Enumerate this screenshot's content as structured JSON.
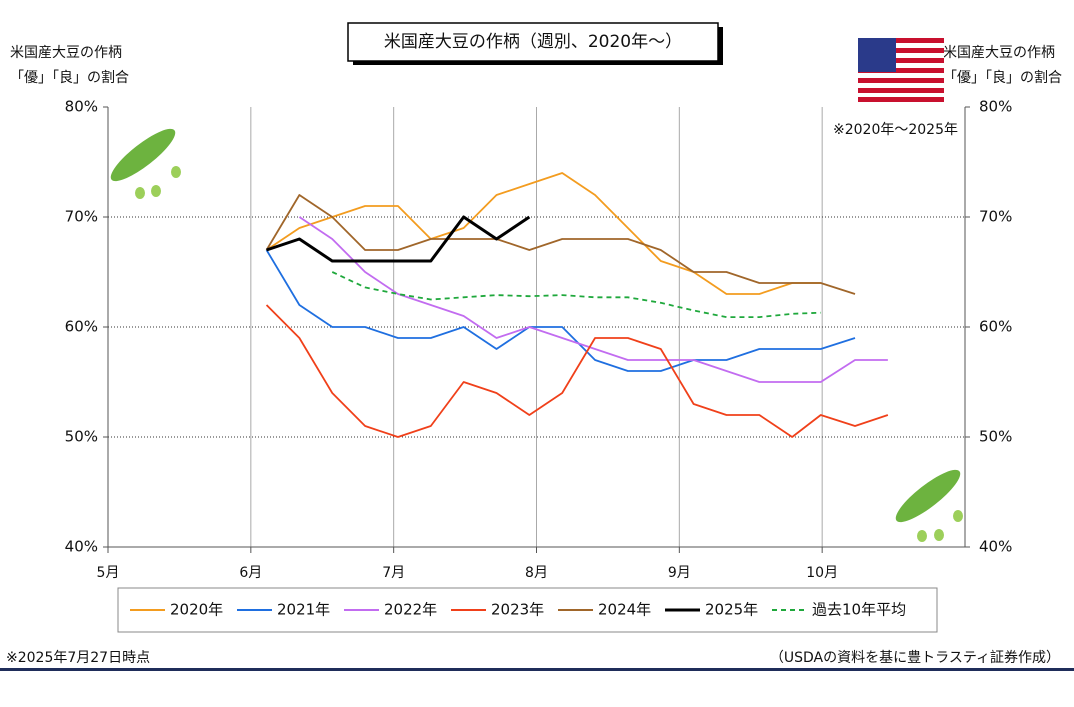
{
  "chart_data": {
    "type": "line",
    "title": "米国産大豆の作柄（週別、2020年～）",
    "ylabel": [
      "米国産大豆の作柄",
      "「優」「良」の割合"
    ],
    "y2label": [
      "米国産大豆の作柄",
      "「優」「良」の割合"
    ],
    "annotation": "※2020年～2025年",
    "footnote": "※2025年7月27日時点",
    "source": "（USDAの資料を基に豊トラスティ証券作成）",
    "x": [
      6.11,
      6.34,
      6.57,
      6.8,
      7.03,
      7.26,
      7.49,
      7.72,
      7.95,
      8.18,
      8.41,
      8.64,
      8.87,
      9.1,
      9.33,
      9.56,
      9.79,
      9.99,
      10.23,
      10.46
    ],
    "xlim": [
      5,
      11
    ],
    "xticks": [
      {
        "value": 5,
        "label": "5月"
      },
      {
        "value": 6,
        "label": "6月"
      },
      {
        "value": 7,
        "label": "7月"
      },
      {
        "value": 8,
        "label": "8月"
      },
      {
        "value": 9,
        "label": "9月"
      },
      {
        "value": 10,
        "label": "10月"
      }
    ],
    "ylim": [
      40,
      80
    ],
    "yticks": [
      {
        "value": 40,
        "label": "40%"
      },
      {
        "value": 50,
        "label": "50%"
      },
      {
        "value": 60,
        "label": "60%"
      },
      {
        "value": 70,
        "label": "70%"
      },
      {
        "value": 80,
        "label": "80%"
      }
    ],
    "y2lim": [
      40,
      80
    ],
    "y2ticks": [
      {
        "value": 40,
        "label": "40%"
      },
      {
        "value": 50,
        "label": "50%"
      },
      {
        "value": 60,
        "label": "60%"
      },
      {
        "value": 70,
        "label": "70%"
      },
      {
        "value": 80,
        "label": "80%"
      }
    ],
    "grid": true,
    "legend": "bottom",
    "series": [
      {
        "name": "2020年",
        "color": "#f39c1f",
        "values": [
          67,
          69,
          70,
          71,
          71,
          68,
          69,
          72,
          73,
          74,
          72,
          69,
          66,
          65,
          63,
          63,
          64,
          64,
          null,
          null
        ]
      },
      {
        "name": "2021年",
        "color": "#1f6fe0",
        "values": [
          67,
          62,
          60,
          60,
          59,
          59,
          60,
          58,
          60,
          60,
          57,
          56,
          56,
          57,
          57,
          58,
          58,
          58,
          59,
          null
        ]
      },
      {
        "name": "2022年",
        "color": "#c26cf0",
        "values": [
          null,
          70,
          68,
          65,
          63,
          62,
          61,
          59,
          60,
          59,
          58,
          57,
          57,
          57,
          56,
          55,
          55,
          55,
          57,
          57
        ]
      },
      {
        "name": "2023年",
        "color": "#f0401a",
        "values": [
          62,
          59,
          54,
          51,
          50,
          51,
          55,
          54,
          52,
          54,
          59,
          59,
          58,
          53,
          52,
          52,
          50,
          52,
          51,
          52
        ]
      },
      {
        "name": "2024年",
        "color": "#a0662a",
        "values": [
          67,
          72,
          70,
          67,
          67,
          68,
          68,
          68,
          67,
          68,
          68,
          68,
          67,
          65,
          65,
          64,
          64,
          64,
          63,
          null
        ]
      },
      {
        "name": "2025年",
        "color": "#000000",
        "values": [
          67,
          68,
          66,
          66,
          66,
          66,
          70,
          68,
          70,
          null,
          null,
          null,
          null,
          null,
          null,
          null,
          null,
          null,
          null,
          null
        ]
      },
      {
        "name": "過去10年平均",
        "color": "#1fa83c",
        "dashed": true,
        "values": [
          null,
          null,
          65,
          63.6,
          63,
          62.5,
          62.7,
          62.9,
          62.8,
          62.9,
          62.7,
          62.7,
          62.2,
          61.5,
          60.9,
          60.9,
          61.2,
          61.3,
          null,
          null
        ]
      }
    ]
  }
}
